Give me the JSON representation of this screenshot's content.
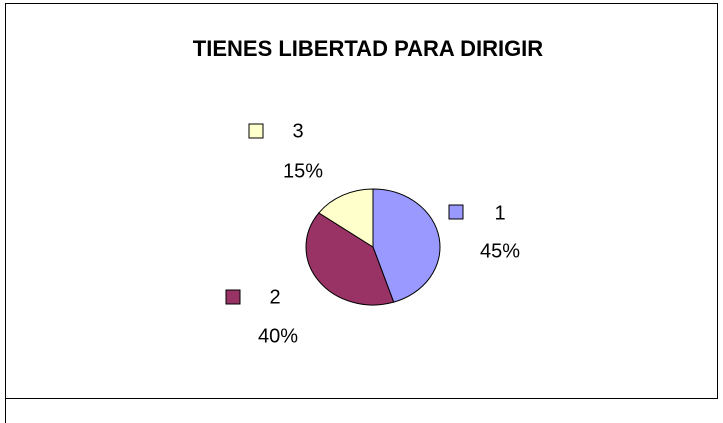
{
  "chart_data": {
    "type": "pie",
    "title": "TIENES LIBERTAD PARA DIRIGIR",
    "categories": [
      "1",
      "2",
      "3"
    ],
    "values": [
      45,
      40,
      15
    ],
    "value_labels": [
      "45%",
      "40%",
      "15%"
    ],
    "colors": [
      "#9999ff",
      "#993366",
      "#ffffcc"
    ]
  }
}
